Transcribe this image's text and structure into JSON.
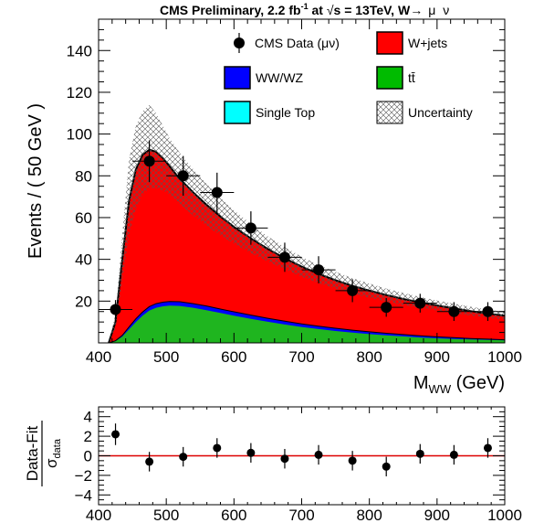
{
  "title": {
    "main": "CMS Preliminary, 2.2 fb",
    "sup": "-1",
    "at": " at ",
    "sqrt": "√",
    "energy": "s = 13TeV, W",
    "arrow": "→",
    "mu": "μ",
    "nu": "ν"
  },
  "chart_data": [
    {
      "type": "area",
      "xlabel": "M",
      "xlabel_sub": "WW",
      "xlabel_unit": " (GeV)",
      "ylabel": "Events / ( 50 GeV )",
      "xlim": [
        400,
        1000
      ],
      "ylim": [
        0,
        155
      ],
      "x_ticks": [
        400,
        500,
        600,
        700,
        800,
        900,
        1000
      ],
      "x_tick_labels": [
        "400",
        "500",
        "600",
        "700",
        "800",
        "900",
        "1000"
      ],
      "y_ticks": [
        20,
        40,
        60,
        80,
        100,
        120,
        140
      ],
      "y_tick_labels": [
        "20",
        "40",
        "60",
        "80",
        "100",
        "120",
        "140"
      ],
      "legend_position": "top",
      "legend": [
        {
          "label": "CMS Data (μν)",
          "kind": "marker"
        },
        {
          "label": "W+jets",
          "kind": "box",
          "color": "#ff0000"
        },
        {
          "label": "WW/WZ",
          "kind": "box",
          "color": "#0000ff"
        },
        {
          "label": "tt̄",
          "kind": "box",
          "color": "#00bb00"
        },
        {
          "label": "Single Top",
          "kind": "box",
          "color": "#00ffff"
        },
        {
          "label": "Uncertainty",
          "kind": "hatch"
        }
      ],
      "colors": {
        "wjets": "#ff0000",
        "diboson": "#0000ff",
        "ttbar": "#1fb51f",
        "singletop": "#00ffff"
      },
      "stack_x": [
        415,
        425,
        435,
        445,
        455,
        465,
        475,
        485,
        495,
        505,
        520,
        540,
        560,
        580,
        600,
        625,
        650,
        675,
        700,
        725,
        750,
        775,
        800,
        825,
        850,
        875,
        900,
        925,
        950,
        975,
        1000
      ],
      "ttbar_top": [
        0,
        0.8,
        3,
        6.5,
        10,
        13,
        15.5,
        16.8,
        17.5,
        17.8,
        17.7,
        16.8,
        15.6,
        14.3,
        13,
        11.5,
        10.1,
        8.8,
        7.6,
        6.6,
        5.7,
        4.9,
        4.2,
        3.6,
        3.1,
        2.6,
        2.2,
        1.9,
        1.6,
        1.4,
        1.2
      ],
      "diboson_top": [
        0,
        1,
        3.6,
        7.6,
        11.5,
        14.8,
        17.4,
        18.8,
        19.5,
        19.8,
        19.7,
        18.8,
        17.6,
        16.2,
        14.9,
        13.3,
        11.8,
        10.4,
        9.1,
        8,
        7,
        6.1,
        5.3,
        4.6,
        4,
        3.4,
        2.9,
        2.5,
        2.1,
        1.8,
        1.5
      ],
      "total": [
        0,
        10,
        40,
        68,
        83,
        90,
        92.5,
        91.5,
        88.5,
        84.5,
        78.5,
        72,
        66,
        60.5,
        55.5,
        50,
        45,
        40.5,
        36.5,
        33,
        30,
        27.3,
        25,
        22.9,
        21,
        19.4,
        17.9,
        16.5,
        15.2,
        14,
        13
      ],
      "unc_upper": [
        0,
        14,
        52,
        88,
        104,
        111,
        114,
        110,
        104,
        98,
        91,
        83,
        76,
        69.5,
        63.5,
        57,
        51,
        45.8,
        41.3,
        37.3,
        34,
        31,
        28.4,
        26,
        23.9,
        22,
        20.3,
        18.8,
        17.3,
        16,
        14.8
      ],
      "unc_lower": [
        0,
        7,
        30,
        52,
        64,
        71,
        74,
        74,
        73,
        71,
        66.5,
        61,
        56,
        51.5,
        47.5,
        43,
        39,
        35.2,
        31.7,
        28.7,
        26,
        23.6,
        21.6,
        19.8,
        18.1,
        16.8,
        15.5,
        14.2,
        13.1,
        12,
        11.2
      ],
      "series": [
        {
          "name": "CMS Data (μν)",
          "x": [
            425,
            475,
            525,
            575,
            625,
            675,
            725,
            775,
            825,
            875,
            925,
            975
          ],
          "y": [
            16,
            87,
            80,
            72,
            55,
            41,
            35,
            25,
            17,
            19,
            15,
            15
          ],
          "err": [
            4.5,
            10,
            9.5,
            9.5,
            8,
            7,
            6.5,
            5.5,
            4.5,
            4.5,
            4.5,
            4.5
          ]
        }
      ]
    },
    {
      "type": "scatter",
      "xlim": [
        400,
        1000
      ],
      "ylim": [
        -5,
        5
      ],
      "y_axis_label_top": "Data-Fit",
      "y_axis_label_bottom": "σ",
      "y_axis_label_bottom_sub": "data",
      "x_ticks": [
        400,
        500,
        600,
        700,
        800,
        900,
        1000
      ],
      "x_tick_labels": [
        "400",
        "500",
        "600",
        "700",
        "800",
        "900",
        "1000"
      ],
      "y_ticks": [
        -4,
        -2,
        0,
        2,
        4
      ],
      "y_tick_labels": [
        "−4",
        "−2",
        "0",
        "2",
        "4"
      ],
      "reference_line": 0,
      "reference_color": "#dd0000",
      "series": [
        {
          "x": [
            425,
            475,
            525,
            575,
            625,
            675,
            725,
            775,
            825,
            875,
            925,
            975
          ],
          "y": [
            2.2,
            -0.6,
            -0.1,
            0.8,
            0.3,
            -0.3,
            0.1,
            -0.5,
            -1.1,
            0.2,
            0.1,
            0.8
          ],
          "err": [
            1.1,
            1,
            1,
            1,
            1,
            1,
            1,
            1,
            1,
            1,
            1,
            1
          ]
        }
      ]
    }
  ]
}
